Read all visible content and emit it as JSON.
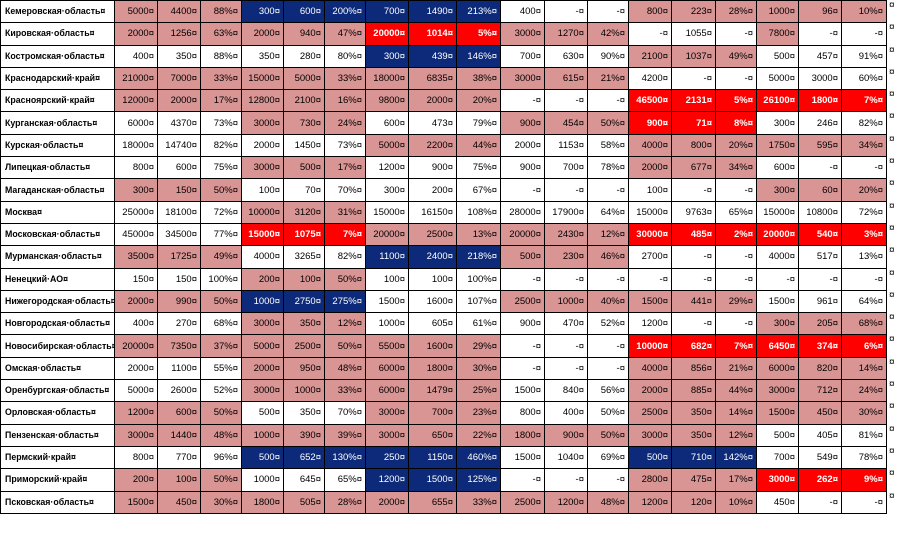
{
  "table": {
    "colors": {
      "rose": "#d99594",
      "navy": "#0d2a7a",
      "red": "#ff0000",
      "none": "#ffffff"
    },
    "rows": [
      {
        "name": "Кемеровская·область¤",
        "marks": [
          "rose",
          "rose",
          "rose",
          "navy",
          "navy",
          "navy",
          "navy",
          "navy",
          "navy",
          "none",
          "none",
          "none",
          "rose",
          "rose",
          "rose",
          "rose",
          "rose",
          "rose"
        ],
        "values": [
          "5000¤",
          "4400¤",
          "88%¤",
          "300¤",
          "600¤",
          "200%¤",
          "700¤",
          "1490¤",
          "213%¤",
          "400¤",
          "-¤",
          "-¤",
          "800¤",
          "223¤",
          "28%¤",
          "1000¤",
          "96¤",
          "10%¤"
        ]
      },
      {
        "name": "Кировская·область¤",
        "marks": [
          "rose",
          "rose",
          "rose",
          "rose",
          "rose",
          "rose",
          "red",
          "red",
          "red",
          "rose",
          "rose",
          "rose",
          "none",
          "none",
          "none",
          "rose",
          "none",
          "none"
        ],
        "values": [
          "2000¤",
          "1256¤",
          "63%¤",
          "2000¤",
          "940¤",
          "47%¤",
          "20000¤",
          "1014¤",
          "5%¤",
          "3000¤",
          "1270¤",
          "42%¤",
          "-¤",
          "1055¤",
          "-¤",
          "7800¤",
          "-¤",
          "-¤"
        ]
      },
      {
        "name": "Костромская·область¤",
        "marks": [
          "none",
          "none",
          "none",
          "none",
          "none",
          "none",
          "navy",
          "navy",
          "navy",
          "none",
          "none",
          "none",
          "rose",
          "rose",
          "rose",
          "none",
          "none",
          "none"
        ],
        "values": [
          "400¤",
          "350¤",
          "88%¤",
          "350¤",
          "280¤",
          "80%¤",
          "300¤",
          "439¤",
          "146%¤",
          "700¤",
          "630¤",
          "90%¤",
          "2100¤",
          "1037¤",
          "49%¤",
          "500¤",
          "457¤",
          "91%¤"
        ]
      },
      {
        "name": "Краснодарский·край¤",
        "marks": [
          "rose",
          "rose",
          "rose",
          "rose",
          "rose",
          "rose",
          "rose",
          "rose",
          "rose",
          "rose",
          "rose",
          "rose",
          "none",
          "none",
          "none",
          "none",
          "none",
          "none"
        ],
        "values": [
          "21000¤",
          "7000¤",
          "33%¤",
          "15000¤",
          "5000¤",
          "33%¤",
          "18000¤",
          "6835¤",
          "38%¤",
          "3000¤",
          "615¤",
          "21%¤",
          "4200¤",
          "-¤",
          "-¤",
          "5000¤",
          "3000¤",
          "60%¤"
        ]
      },
      {
        "name": "Красноярский·край¤",
        "marks": [
          "rose",
          "rose",
          "rose",
          "rose",
          "rose",
          "rose",
          "rose",
          "rose",
          "rose",
          "none",
          "none",
          "none",
          "red",
          "red",
          "red",
          "red",
          "red",
          "red"
        ],
        "values": [
          "12000¤",
          "2000¤",
          "17%¤",
          "12800¤",
          "2100¤",
          "16%¤",
          "9800¤",
          "2000¤",
          "20%¤",
          "-¤",
          "-¤",
          "-¤",
          "46500¤",
          "2131¤",
          "5%¤",
          "26100¤",
          "1800¤",
          "7%¤"
        ]
      },
      {
        "name": "Курганская·область¤",
        "marks": [
          "none",
          "none",
          "none",
          "rose",
          "rose",
          "rose",
          "none",
          "none",
          "none",
          "rose",
          "rose",
          "rose",
          "red",
          "red",
          "red",
          "none",
          "none",
          "none"
        ],
        "values": [
          "6000¤",
          "4370¤",
          "73%¤",
          "3000¤",
          "730¤",
          "24%¤",
          "600¤",
          "473¤",
          "79%¤",
          "900¤",
          "454¤",
          "50%¤",
          "900¤",
          "71¤",
          "8%¤",
          "300¤",
          "246¤",
          "82%¤"
        ]
      },
      {
        "name": "Курская·область¤",
        "marks": [
          "none",
          "none",
          "none",
          "none",
          "none",
          "none",
          "rose",
          "rose",
          "rose",
          "none",
          "none",
          "none",
          "rose",
          "rose",
          "rose",
          "rose",
          "rose",
          "rose"
        ],
        "values": [
          "18000¤",
          "14740¤",
          "82%¤",
          "2000¤",
          "1450¤",
          "73%¤",
          "5000¤",
          "2200¤",
          "44%¤",
          "2000¤",
          "1153¤",
          "58%¤",
          "4000¤",
          "800¤",
          "20%¤",
          "1750¤",
          "595¤",
          "34%¤"
        ]
      },
      {
        "name": "Липецкая·область¤",
        "marks": [
          "none",
          "none",
          "none",
          "rose",
          "rose",
          "rose",
          "none",
          "none",
          "none",
          "none",
          "none",
          "none",
          "rose",
          "rose",
          "rose",
          "none",
          "none",
          "none"
        ],
        "values": [
          "800¤",
          "600¤",
          "75%¤",
          "3000¤",
          "500¤",
          "17%¤",
          "1200¤",
          "900¤",
          "75%¤",
          "900¤",
          "700¤",
          "78%¤",
          "2000¤",
          "677¤",
          "34%¤",
          "600¤",
          "-¤",
          "-¤"
        ]
      },
      {
        "name": "Магаданская·область¤",
        "marks": [
          "rose",
          "rose",
          "rose",
          "none",
          "none",
          "none",
          "none",
          "none",
          "none",
          "none",
          "none",
          "none",
          "none",
          "none",
          "none",
          "rose",
          "rose",
          "rose"
        ],
        "values": [
          "300¤",
          "150¤",
          "50%¤",
          "100¤",
          "70¤",
          "70%¤",
          "300¤",
          "200¤",
          "67%¤",
          "-¤",
          "-¤",
          "-¤",
          "100¤",
          "-¤",
          "-¤",
          "300¤",
          "60¤",
          "20%¤"
        ]
      },
      {
        "name": "Москва¤",
        "marks": [
          "none",
          "none",
          "none",
          "rose",
          "rose",
          "rose",
          "none",
          "none",
          "none",
          "none",
          "none",
          "none",
          "none",
          "none",
          "none",
          "none",
          "none",
          "none"
        ],
        "values": [
          "25000¤",
          "18100¤",
          "72%¤",
          "10000¤",
          "3120¤",
          "31%¤",
          "15000¤",
          "16150¤",
          "108%¤",
          "28000¤",
          "17900¤",
          "64%¤",
          "15000¤",
          "9763¤",
          "65%¤",
          "15000¤",
          "10800¤",
          "72%¤"
        ]
      },
      {
        "name": "Московская·область¤",
        "marks": [
          "none",
          "none",
          "none",
          "red",
          "red",
          "red",
          "rose",
          "rose",
          "rose",
          "rose",
          "rose",
          "rose",
          "red",
          "red",
          "red",
          "red",
          "red",
          "red"
        ],
        "values": [
          "45000¤",
          "34500¤",
          "77%¤",
          "15000¤",
          "1075¤",
          "7%¤",
          "20000¤",
          "2500¤",
          "13%¤",
          "20000¤",
          "2430¤",
          "12%¤",
          "30000¤",
          "485¤",
          "2%¤",
          "20000¤",
          "540¤",
          "3%¤"
        ]
      },
      {
        "name": "Мурманская·область¤",
        "marks": [
          "rose",
          "rose",
          "rose",
          "none",
          "none",
          "none",
          "navy",
          "navy",
          "navy",
          "rose",
          "rose",
          "rose",
          "none",
          "none",
          "none",
          "none",
          "none",
          "none"
        ],
        "values": [
          "3500¤",
          "1725¤",
          "49%¤",
          "4000¤",
          "3265¤",
          "82%¤",
          "1100¤",
          "2400¤",
          "218%¤",
          "500¤",
          "230¤",
          "46%¤",
          "2700¤",
          "-¤",
          "-¤",
          "4000¤",
          "517¤",
          "13%¤"
        ]
      },
      {
        "name": "Ненецкий·АО¤",
        "marks": [
          "none",
          "none",
          "none",
          "rose",
          "rose",
          "rose",
          "none",
          "none",
          "none",
          "none",
          "none",
          "none",
          "none",
          "none",
          "none",
          "none",
          "none",
          "none"
        ],
        "values": [
          "150¤",
          "150¤",
          "100%¤",
          "200¤",
          "100¤",
          "50%¤",
          "100¤",
          "100¤",
          "100%¤",
          "-¤",
          "-¤",
          "-¤",
          "-¤",
          "-¤",
          "-¤",
          "-¤",
          "-¤",
          "-¤"
        ]
      },
      {
        "name": "Нижегородская·область¤",
        "marks": [
          "rose",
          "rose",
          "rose",
          "navy",
          "navy",
          "navy",
          "none",
          "none",
          "none",
          "rose",
          "rose",
          "rose",
          "rose",
          "rose",
          "rose",
          "none",
          "none",
          "none"
        ],
        "values": [
          "2000¤",
          "990¤",
          "50%¤",
          "1000¤",
          "2750¤",
          "275%¤",
          "1500¤",
          "1600¤",
          "107%¤",
          "2500¤",
          "1000¤",
          "40%¤",
          "1500¤",
          "441¤",
          "29%¤",
          "1500¤",
          "961¤",
          "64%¤"
        ]
      },
      {
        "name": "Новгородская·область¤",
        "marks": [
          "none",
          "none",
          "none",
          "rose",
          "rose",
          "rose",
          "none",
          "none",
          "none",
          "none",
          "none",
          "none",
          "none",
          "none",
          "none",
          "rose",
          "rose",
          "rose"
        ],
        "values": [
          "400¤",
          "270¤",
          "68%¤",
          "3000¤",
          "350¤",
          "12%¤",
          "1000¤",
          "605¤",
          "61%¤",
          "900¤",
          "470¤",
          "52%¤",
          "1200¤",
          "-¤",
          "-¤",
          "300¤",
          "205¤",
          "68%¤"
        ]
      },
      {
        "name": "Новосибирская·область¤",
        "marks": [
          "rose",
          "rose",
          "rose",
          "rose",
          "rose",
          "rose",
          "rose",
          "rose",
          "rose",
          "none",
          "none",
          "none",
          "red",
          "red",
          "red",
          "red",
          "red",
          "red"
        ],
        "values": [
          "20000¤",
          "7350¤",
          "37%¤",
          "5000¤",
          "2500¤",
          "50%¤",
          "5500¤",
          "1600¤",
          "29%¤",
          "-¤",
          "-¤",
          "-¤",
          "10000¤",
          "682¤",
          "7%¤",
          "6450¤",
          "374¤",
          "6%¤"
        ]
      },
      {
        "name": "Омская·область¤",
        "marks": [
          "none",
          "none",
          "none",
          "rose",
          "rose",
          "rose",
          "rose",
          "rose",
          "rose",
          "none",
          "none",
          "none",
          "rose",
          "rose",
          "rose",
          "rose",
          "rose",
          "rose"
        ],
        "values": [
          "2000¤",
          "1100¤",
          "55%¤",
          "2000¤",
          "950¤",
          "48%¤",
          "6000¤",
          "1800¤",
          "30%¤",
          "-¤",
          "-¤",
          "-¤",
          "4000¤",
          "856¤",
          "21%¤",
          "6000¤",
          "820¤",
          "14%¤"
        ]
      },
      {
        "name": "Оренбургская·область¤",
        "marks": [
          "none",
          "none",
          "none",
          "rose",
          "rose",
          "rose",
          "rose",
          "rose",
          "rose",
          "none",
          "none",
          "none",
          "rose",
          "rose",
          "rose",
          "rose",
          "rose",
          "rose"
        ],
        "values": [
          "5000¤",
          "2600¤",
          "52%¤",
          "3000¤",
          "1000¤",
          "33%¤",
          "6000¤",
          "1479¤",
          "25%¤",
          "1500¤",
          "840¤",
          "56%¤",
          "2000¤",
          "885¤",
          "44%¤",
          "3000¤",
          "712¤",
          "24%¤"
        ]
      },
      {
        "name": "Орловская·область¤",
        "marks": [
          "rose",
          "rose",
          "rose",
          "none",
          "none",
          "none",
          "rose",
          "rose",
          "rose",
          "none",
          "none",
          "none",
          "rose",
          "rose",
          "rose",
          "rose",
          "rose",
          "rose"
        ],
        "values": [
          "1200¤",
          "600¤",
          "50%¤",
          "500¤",
          "350¤",
          "70%¤",
          "3000¤",
          "700¤",
          "23%¤",
          "800¤",
          "400¤",
          "50%¤",
          "2500¤",
          "350¤",
          "14%¤",
          "1500¤",
          "450¤",
          "30%¤"
        ]
      },
      {
        "name": "Пензенская·область¤",
        "marks": [
          "rose",
          "rose",
          "rose",
          "rose",
          "rose",
          "rose",
          "rose",
          "rose",
          "rose",
          "rose",
          "rose",
          "rose",
          "rose",
          "rose",
          "rose",
          "none",
          "none",
          "none"
        ],
        "values": [
          "3000¤",
          "1440¤",
          "48%¤",
          "1000¤",
          "390¤",
          "39%¤",
          "3000¤",
          "650¤",
          "22%¤",
          "1800¤",
          "900¤",
          "50%¤",
          "3000¤",
          "350¤",
          "12%¤",
          "500¤",
          "405¤",
          "81%¤"
        ]
      },
      {
        "name": "Пермский·край¤",
        "marks": [
          "none",
          "none",
          "none",
          "navy",
          "navy",
          "navy",
          "navy",
          "navy",
          "navy",
          "none",
          "none",
          "none",
          "navy",
          "navy",
          "navy",
          "none",
          "none",
          "none"
        ],
        "values": [
          "800¤",
          "770¤",
          "96%¤",
          "500¤",
          "652¤",
          "130%¤",
          "250¤",
          "1150¤",
          "460%¤",
          "1500¤",
          "1040¤",
          "69%¤",
          "500¤",
          "710¤",
          "142%¤",
          "700¤",
          "549¤",
          "78%¤"
        ]
      },
      {
        "name": "Приморский·край¤",
        "marks": [
          "rose",
          "rose",
          "rose",
          "none",
          "none",
          "none",
          "navy",
          "navy",
          "navy",
          "none",
          "none",
          "none",
          "rose",
          "rose",
          "rose",
          "red",
          "red",
          "red"
        ],
        "values": [
          "200¤",
          "100¤",
          "50%¤",
          "1000¤",
          "645¤",
          "65%¤",
          "1200¤",
          "1500¤",
          "125%¤",
          "-¤",
          "-¤",
          "-¤",
          "2800¤",
          "475¤",
          "17%¤",
          "3000¤",
          "262¤",
          "9%¤"
        ]
      },
      {
        "name": "Псковская·область¤",
        "marks": [
          "rose",
          "rose",
          "rose",
          "rose",
          "rose",
          "rose",
          "rose",
          "rose",
          "rose",
          "rose",
          "rose",
          "rose",
          "rose",
          "rose",
          "rose",
          "none",
          "none",
          "none"
        ],
        "values": [
          "1500¤",
          "450¤",
          "30%¤",
          "1800¤",
          "505¤",
          "28%¤",
          "2000¤",
          "655¤",
          "33%¤",
          "2500¤",
          "1200¤",
          "48%¤",
          "1200¤",
          "120¤",
          "10%¤",
          "450¤",
          "-¤",
          "-¤"
        ]
      }
    ]
  }
}
